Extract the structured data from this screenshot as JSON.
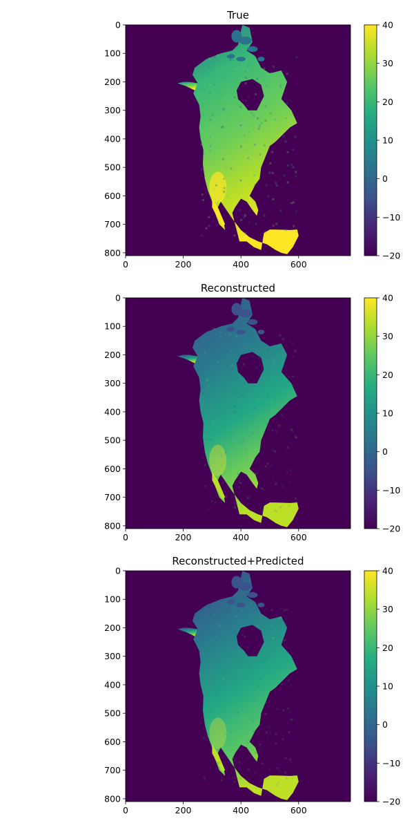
{
  "chart_data": [
    {
      "type": "heatmap",
      "title": "True",
      "xlabel": "",
      "ylabel": "",
      "xlim": [
        0,
        780
      ],
      "ylim": [
        810,
        0
      ],
      "x_ticks": [
        "0",
        "200",
        "400",
        "600"
      ],
      "y_ticks": [
        "0",
        "100",
        "200",
        "300",
        "400",
        "500",
        "600",
        "700",
        "800"
      ],
      "colorbar": {
        "min": -20,
        "max": 40,
        "ticks": [
          "40",
          "30",
          "20",
          "10",
          "0",
          "−10",
          "−20"
        ],
        "colormap": "viridis"
      },
      "ocean_value": -20,
      "land_value_range": [
        0,
        40
      ],
      "warm_bias": 0.7,
      "noise": 0.6
    },
    {
      "type": "heatmap",
      "title": "Reconstructed",
      "xlabel": "",
      "ylabel": "",
      "xlim": [
        0,
        780
      ],
      "ylim": [
        810,
        0
      ],
      "x_ticks": [
        "0",
        "200",
        "400",
        "600"
      ],
      "y_ticks": [
        "0",
        "100",
        "200",
        "300",
        "400",
        "500",
        "600",
        "700",
        "800"
      ],
      "colorbar": {
        "min": -20,
        "max": 40,
        "ticks": [
          "40",
          "30",
          "20",
          "10",
          "0",
          "−10",
          "−20"
        ],
        "colormap": "viridis"
      },
      "ocean_value": -20,
      "land_value_range": [
        0,
        35
      ],
      "warm_bias": 0.35,
      "noise": 0.35
    },
    {
      "type": "heatmap",
      "title": "Reconstructed+Predicted",
      "xlabel": "",
      "ylabel": "",
      "xlim": [
        0,
        780
      ],
      "ylim": [
        810,
        0
      ],
      "x_ticks": [
        "0",
        "200",
        "400",
        "600"
      ],
      "y_ticks": [
        "0",
        "100",
        "200",
        "300",
        "400",
        "500",
        "600",
        "700",
        "800"
      ],
      "colorbar": {
        "min": -20,
        "max": 40,
        "ticks": [
          "40",
          "30",
          "20",
          "10",
          "0",
          "−10",
          "−20"
        ],
        "colormap": "viridis"
      },
      "ocean_value": -20,
      "land_value_range": [
        0,
        35
      ],
      "warm_bias": 0.3,
      "noise": 0.3
    }
  ],
  "colors": {
    "viridis_low": "#440154",
    "viridis_mid": "#21918c",
    "viridis_high": "#fde725"
  }
}
